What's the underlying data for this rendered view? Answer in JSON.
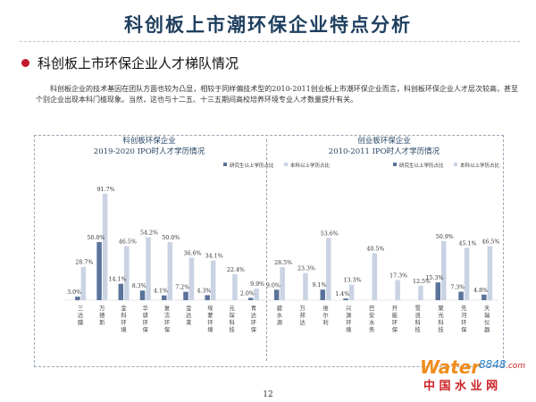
{
  "page": {
    "title": "科创板上市潮环保企业特点分析",
    "section_heading": "科创板上市环保企业人才梯队情况",
    "paragraph": "科创板企业的技术基因在团队方面也较为凸显，相较于同样偏技术型的2010-2011创业板上市潮环保企业而言，科创板环保企业人才层次较高，甚至个别企业出现本科门槛现象。当然，这也与十二五、十三五期间高校培养环境专业人才数量提升有关。",
    "page_number": "12",
    "watermark": {
      "word_part": "Water",
      "number_part": "8848",
      "suffix": ".com",
      "cn": "中 国 水 业 网"
    }
  },
  "colors": {
    "title": "#1f3f5f",
    "bullet": "#c0182b",
    "series_postgrad": "#5b739a",
    "series_bachelor": "#c9d3e4",
    "brand_orange": "#f08c1d",
    "brand_blue": "#2a7fc8",
    "brand_red": "#cc2228"
  },
  "chart_data": [
    {
      "type": "bar",
      "title": "科创板环保企业",
      "subtitle": "2019-2020 IPO时人才学历情况",
      "categories": [
        "三达膜",
        "万德斯",
        "金科环境",
        "华骐环保",
        "复洁环保",
        "金达莱",
        "埃蒙环境",
        "元琛科技",
        "青达环保"
      ],
      "series": [
        {
          "name": "研究生以上学历占比",
          "values": [
            3.0,
            50.0,
            14.1,
            8.3,
            4.1,
            7.2,
            4.3,
            null,
            2.0
          ]
        },
        {
          "name": "本科以上学历占比",
          "values": [
            28.7,
            91.7,
            46.5,
            54.2,
            50.0,
            36.6,
            34.1,
            22.4,
            9.9
          ]
        }
      ],
      "labels": {
        "postgrad": [
          "3.0%",
          "50.0%",
          "14.1%",
          "8.3%",
          "4.1%",
          "7.2%",
          "4.3%",
          "",
          "2.0%"
        ],
        "bachelor": [
          "28.7%",
          "91.7%",
          "46.5%",
          "54.2%",
          "50.0%",
          "36.6%",
          "34.1%",
          "22.4%",
          "9.9%"
        ]
      },
      "ylim": [
        0,
        100
      ],
      "legend_position": "top-right"
    },
    {
      "type": "bar",
      "title": "创业板环保企业",
      "subtitle": "2010-2011 IPO时人才学历情况",
      "categories": [
        "碧水源",
        "万邦达",
        "维尔利",
        "兴源环境",
        "巴安水务",
        "开能环保",
        "雪浪科技",
        "聚光科技",
        "先河环保",
        "天瑞仪器"
      ],
      "series": [
        {
          "name": "研究生以上学历占比",
          "values": [
            9.0,
            null,
            9.1,
            1.4,
            null,
            null,
            null,
            15.3,
            7.3,
            4.8
          ]
        },
        {
          "name": "本科以上学历占比",
          "values": [
            28.5,
            23.3,
            53.6,
            13.3,
            40.5,
            17.3,
            12.5,
            50.9,
            45.1,
            46.5
          ]
        }
      ],
      "labels": {
        "postgrad": [
          "9.0%",
          "",
          "9.1%",
          "1.4%",
          "",
          "",
          "",
          "15.3%",
          "7.3%",
          "4.8%"
        ],
        "bachelor": [
          "28.5%",
          "23.3%",
          "53.6%",
          "13.3%",
          "40.5%",
          "17.3%",
          "12.5%",
          "50.9%",
          "45.1%",
          "46.5%"
        ]
      },
      "ylim": [
        0,
        100
      ],
      "legend_position": "top-right"
    }
  ]
}
